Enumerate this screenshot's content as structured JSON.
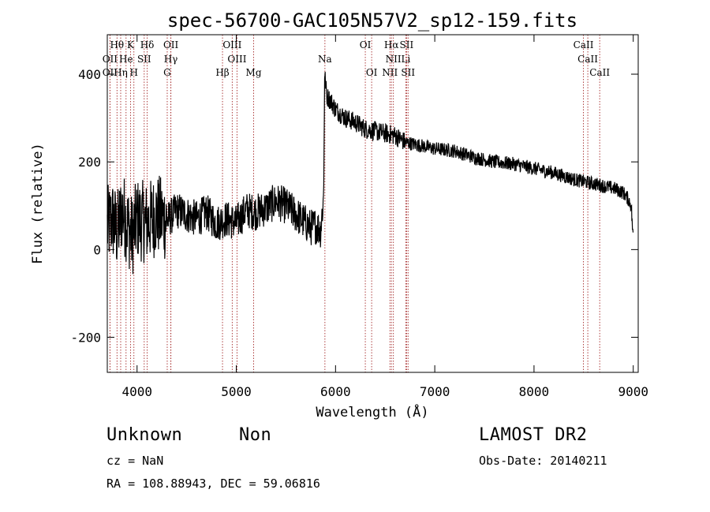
{
  "chart_data": {
    "type": "line",
    "title": "spec-56700-GAC105N57V2_sp12-159.fits",
    "xlabel": "Wavelength (Å)",
    "ylabel": "Flux (relative)",
    "xlim": [
      3700,
      9050
    ],
    "ylim": [
      -280,
      490
    ],
    "xticks": [
      4000,
      5000,
      6000,
      7000,
      8000,
      9000
    ],
    "yticks": [
      -200,
      0,
      200,
      400
    ],
    "grid": false,
    "line_color": "#000000",
    "marker_color": "#a52a2a",
    "spectrum": {
      "x": [
        3700,
        3750,
        3800,
        3850,
        3900,
        3950,
        4000,
        4100,
        4200,
        4300,
        4400,
        4500,
        4600,
        4700,
        4800,
        4900,
        5000,
        5100,
        5200,
        5300,
        5400,
        5500,
        5600,
        5700,
        5750,
        5800,
        5850,
        5880,
        5890,
        5900,
        5910,
        5950,
        6000,
        6100,
        6200,
        6300,
        6400,
        6500,
        6600,
        6700,
        6800,
        6900,
        7000,
        7200,
        7400,
        7600,
        7800,
        8000,
        8200,
        8400,
        8600,
        8800,
        8900,
        8950,
        8980,
        9000
      ],
      "y": [
        50,
        70,
        40,
        90,
        60,
        30,
        70,
        60,
        80,
        65,
        90,
        80,
        70,
        85,
        60,
        70,
        60,
        90,
        85,
        95,
        110,
        100,
        80,
        60,
        50,
        55,
        45,
        120,
        400,
        380,
        350,
        340,
        320,
        300,
        290,
        275,
        270,
        265,
        260,
        245,
        240,
        235,
        230,
        225,
        210,
        200,
        195,
        185,
        175,
        160,
        150,
        140,
        130,
        115,
        100,
        20
      ]
    },
    "lines": [
      {
        "label": "Hθ",
        "x": 3798,
        "row": 0
      },
      {
        "label": "K",
        "x": 3934,
        "row": 0
      },
      {
        "label": "Hδ",
        "x": 4102,
        "row": 0
      },
      {
        "label": "OII",
        "x": 4341,
        "row": 0
      },
      {
        "label": "OIII",
        "x": 4959,
        "row": 0
      },
      {
        "label": "OI",
        "x": 6300,
        "row": 0
      },
      {
        "label": "Hα",
        "x": 6563,
        "row": 0
      },
      {
        "label": "SII",
        "x": 6716,
        "row": 0
      },
      {
        "label": "CaII",
        "x": 8498,
        "row": 0
      },
      {
        "label": "OII",
        "x": 3727,
        "row": 1
      },
      {
        "label": "He",
        "x": 3889,
        "row": 1
      },
      {
        "label": "SII",
        "x": 4072,
        "row": 1
      },
      {
        "label": "Hγ",
        "x": 4340,
        "row": 1
      },
      {
        "label": "OIII",
        "x": 5007,
        "row": 1
      },
      {
        "label": "Na",
        "x": 5893,
        "row": 1
      },
      {
        "label": "NII",
        "x": 6583,
        "row": 1
      },
      {
        "label": "Li",
        "x": 6708,
        "row": 1
      },
      {
        "label": "CaII",
        "x": 8542,
        "row": 1
      },
      {
        "label": "OII",
        "x": 3727,
        "row": 2
      },
      {
        "label": "Hη",
        "x": 3835,
        "row": 2
      },
      {
        "label": "H",
        "x": 3968,
        "row": 2
      },
      {
        "label": "G",
        "x": 4304,
        "row": 2
      },
      {
        "label": "Hβ",
        "x": 4861,
        "row": 2
      },
      {
        "label": "Mg",
        "x": 5175,
        "row": 2
      },
      {
        "label": "OI",
        "x": 6364,
        "row": 2
      },
      {
        "label": "NII",
        "x": 6548,
        "row": 2
      },
      {
        "label": "SII",
        "x": 6731,
        "row": 2
      },
      {
        "label": "CaII",
        "x": 8662,
        "row": 2
      }
    ]
  },
  "info": {
    "class": "Unknown",
    "subclass": "Non",
    "survey": "LAMOST DR2",
    "cz": "cz = NaN",
    "obs_date": "Obs-Date: 20140211",
    "coords": "RA = 108.88943, DEC =  59.06816"
  }
}
